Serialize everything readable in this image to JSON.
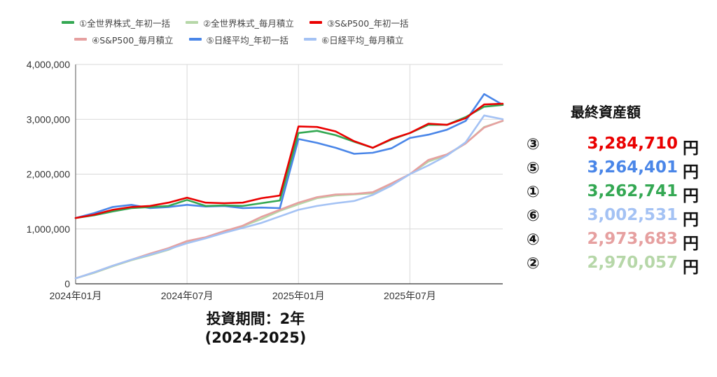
{
  "chart_data": {
    "type": "line",
    "x": [
      "2024年01月",
      "2024年02月",
      "2024年03月",
      "2024年04月",
      "2024年05月",
      "2024年06月",
      "2024年07月",
      "2024年08月",
      "2024年09月",
      "2024年10月",
      "2024年11月",
      "2024年12月",
      "2025年01月",
      "2025年02月",
      "2025年03月",
      "2025年04月",
      "2025年05月",
      "2025年06月",
      "2025年07月",
      "2025年08月",
      "2025年09月",
      "2025年10月",
      "2025年11月",
      "2025年12月"
    ],
    "x_ticks": [
      "2024年01月",
      "2024年07月",
      "2025年01月",
      "2025年07月"
    ],
    "y_ticks": [
      "0",
      "1,000,000",
      "2,000,000",
      "3,000,000",
      "4,000,000"
    ],
    "ylim": [
      0,
      4000000
    ],
    "grid": true,
    "legend_position": "top",
    "series": [
      {
        "name": "①全世界株式_年初一括",
        "color": "#34a853",
        "values": [
          1200000,
          1250000,
          1320000,
          1380000,
          1400000,
          1420000,
          1530000,
          1420000,
          1430000,
          1420000,
          1470000,
          1520000,
          2750000,
          2790000,
          2710000,
          2590000,
          2480000,
          2630000,
          2750000,
          2900000,
          2900000,
          3040000,
          3230000,
          3262741
        ]
      },
      {
        "name": "②全世界株式_毎月積立",
        "color": "#b6d7a8",
        "values": [
          100000,
          200000,
          320000,
          430000,
          520000,
          620000,
          760000,
          840000,
          940000,
          1050000,
          1180000,
          1330000,
          1450000,
          1560000,
          1610000,
          1630000,
          1650000,
          1800000,
          2000000,
          2230000,
          2350000,
          2560000,
          2860000,
          2970057
        ]
      },
      {
        "name": "③S&P500_年初一括",
        "color": "#ea0000",
        "values": [
          1200000,
          1260000,
          1350000,
          1400000,
          1420000,
          1480000,
          1570000,
          1480000,
          1470000,
          1480000,
          1560000,
          1610000,
          2870000,
          2860000,
          2780000,
          2600000,
          2480000,
          2640000,
          2750000,
          2920000,
          2900000,
          3020000,
          3270000,
          3284710
        ]
      },
      {
        "name": "④S&P500_毎月積立",
        "color": "#e6a0a0",
        "values": [
          100000,
          210000,
          330000,
          440000,
          550000,
          650000,
          780000,
          850000,
          960000,
          1060000,
          1220000,
          1350000,
          1480000,
          1580000,
          1630000,
          1640000,
          1670000,
          1830000,
          2000000,
          2260000,
          2360000,
          2560000,
          2850000,
          2973683
        ]
      },
      {
        "name": "⑤日経平均_年初一括",
        "color": "#4a86e8",
        "values": [
          1200000,
          1290000,
          1400000,
          1440000,
          1380000,
          1400000,
          1440000,
          1410000,
          1420000,
          1380000,
          1390000,
          1380000,
          2640000,
          2570000,
          2480000,
          2370000,
          2390000,
          2470000,
          2660000,
          2720000,
          2810000,
          2970000,
          3460000,
          3264401
        ]
      },
      {
        "name": "⑥日経平均_毎月積立",
        "color": "#a4c2f4",
        "values": [
          100000,
          210000,
          330000,
          440000,
          530000,
          630000,
          740000,
          830000,
          930000,
          1020000,
          1110000,
          1230000,
          1350000,
          1420000,
          1470000,
          1510000,
          1620000,
          1790000,
          2000000,
          2160000,
          2340000,
          2580000,
          3070000,
          3002531
        ]
      }
    ]
  },
  "caption": {
    "line1": "投資期間：2年",
    "line2": "(2024-2025)"
  },
  "final_assets": {
    "title": "最終資産額",
    "unit": "円",
    "rows": [
      {
        "marker": "③",
        "value": "3,284,710",
        "color": "#ea0000"
      },
      {
        "marker": "⑤",
        "value": "3,264,401",
        "color": "#4a86e8"
      },
      {
        "marker": "①",
        "value": "3,262,741",
        "color": "#34a853"
      },
      {
        "marker": "⑥",
        "value": "3,002,531",
        "color": "#a4c2f4"
      },
      {
        "marker": "④",
        "value": "2,973,683",
        "color": "#e6a0a0"
      },
      {
        "marker": "②",
        "value": "2,970,057",
        "color": "#b6d7a8"
      }
    ]
  }
}
